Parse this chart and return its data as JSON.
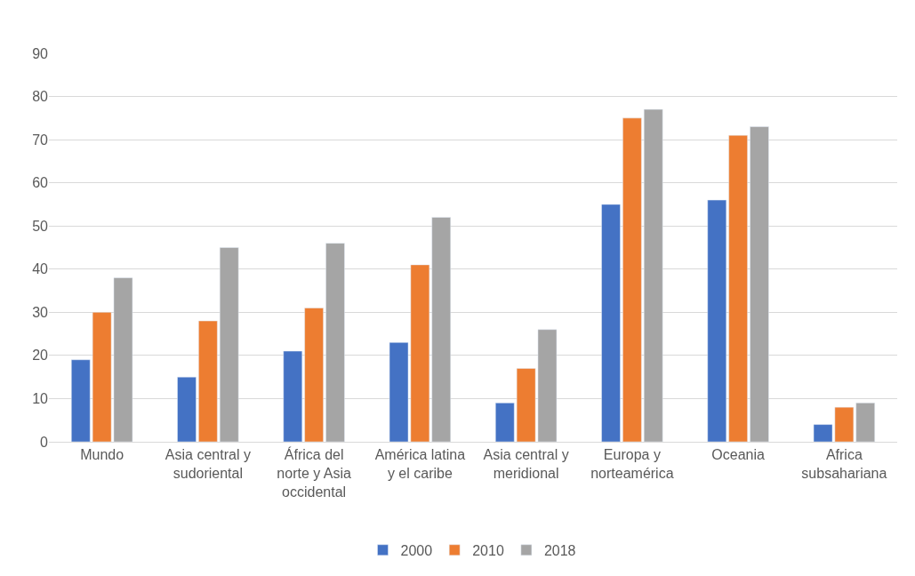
{
  "chart_data": {
    "type": "bar",
    "categories": [
      "Mundo",
      "Asia central y sudoriental",
      "África del norte y Asia occidental",
      "América latina y el caribe",
      "Asia central y meridional",
      "Europa y norteamérica",
      "Oceania",
      "Africa subsahariana"
    ],
    "series": [
      {
        "name": "2000",
        "color": "#4472c4",
        "values": [
          19,
          15,
          21,
          23,
          9,
          55,
          56,
          4
        ]
      },
      {
        "name": "2010",
        "color": "#ed7d31",
        "values": [
          30,
          28,
          31,
          41,
          17,
          75,
          71,
          8
        ]
      },
      {
        "name": "2018",
        "color": "#a5a5a5",
        "values": [
          38,
          45,
          46,
          52,
          26,
          77,
          73,
          9
        ]
      }
    ],
    "ylim": [
      0,
      90
    ],
    "yticks": [
      0,
      10,
      20,
      30,
      40,
      50,
      60,
      70,
      80,
      90
    ],
    "grid": "y",
    "legend": "bottom"
  }
}
